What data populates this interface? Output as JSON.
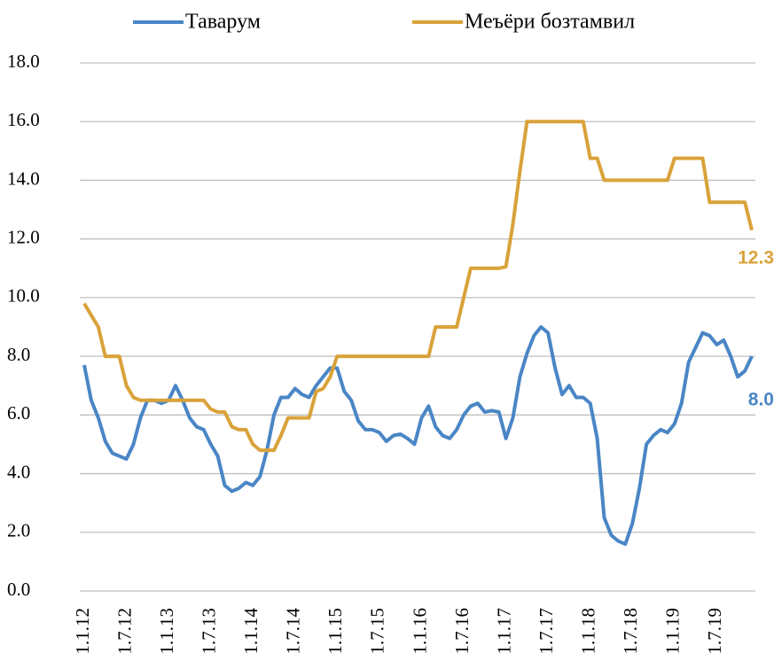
{
  "chart_data": {
    "type": "line",
    "categories": [
      "1.1.12",
      null,
      null,
      null,
      null,
      null,
      "1.7.12",
      null,
      null,
      null,
      null,
      null,
      "1.1.13",
      null,
      null,
      null,
      null,
      null,
      "1.7.13",
      null,
      null,
      null,
      null,
      null,
      "1.1.14",
      null,
      null,
      null,
      null,
      null,
      "1.7.14",
      null,
      null,
      null,
      null,
      null,
      "1.1.15",
      null,
      null,
      null,
      null,
      null,
      "1.7.15",
      null,
      null,
      null,
      null,
      null,
      "1.1.16",
      null,
      null,
      null,
      null,
      null,
      "1.7.16",
      null,
      null,
      null,
      null,
      null,
      "1.1.17",
      null,
      null,
      null,
      null,
      null,
      "1.7.17",
      null,
      null,
      null,
      null,
      null,
      "1.1.18",
      null,
      null,
      null,
      null,
      null,
      "1.7.18",
      null,
      null,
      null,
      null,
      null,
      "1.1.19",
      null,
      null,
      null,
      null,
      null,
      "1.7.19",
      null,
      null,
      null,
      null,
      null
    ],
    "series": [
      {
        "name": "Таварум",
        "color": "#4a86c5",
        "values": [
          7.7,
          6.5,
          5.9,
          5.1,
          4.7,
          4.6,
          4.5,
          5.0,
          5.9,
          6.5,
          6.5,
          6.4,
          6.5,
          7.0,
          6.5,
          5.9,
          5.6,
          5.5,
          5.0,
          4.6,
          3.6,
          3.4,
          3.5,
          3.7,
          3.6,
          3.9,
          4.8,
          6.0,
          6.6,
          6.6,
          6.9,
          6.7,
          6.6,
          7.0,
          7.3,
          7.6,
          7.6,
          6.8,
          6.5,
          5.8,
          5.5,
          5.5,
          5.4,
          5.1,
          5.3,
          5.35,
          5.2,
          5.0,
          5.9,
          6.3,
          5.6,
          5.3,
          5.2,
          5.5,
          6.0,
          6.3,
          6.4,
          6.1,
          6.15,
          6.1,
          5.2,
          5.9,
          7.3,
          8.1,
          8.7,
          9.0,
          8.8,
          7.6,
          6.7,
          7.0,
          6.6,
          6.6,
          6.4,
          5.2,
          2.5,
          1.9,
          1.7,
          1.6,
          2.3,
          3.5,
          5.0,
          5.3,
          5.5,
          5.4,
          5.7,
          6.4,
          7.8,
          8.3,
          8.8,
          8.7,
          8.4,
          8.55,
          8.0,
          7.3,
          7.5,
          8.0
        ],
        "value_labels": [
          null,
          null,
          null,
          null,
          null,
          null,
          null,
          null,
          null,
          null,
          null,
          null,
          null,
          null,
          null,
          null,
          null,
          null,
          null,
          null,
          null,
          null,
          null,
          null,
          null,
          null,
          null,
          null,
          null,
          null,
          null,
          null,
          null,
          null,
          null,
          null,
          null,
          null,
          null,
          null,
          null,
          null,
          null,
          null,
          null,
          null,
          null,
          null,
          null,
          null,
          null,
          null,
          null,
          null,
          null,
          null,
          null,
          null,
          null,
          null,
          null,
          null,
          null,
          null,
          null,
          null,
          null,
          null,
          null,
          null,
          null,
          null,
          null,
          null,
          null,
          null,
          null,
          null,
          null,
          null,
          null,
          null,
          null,
          null,
          null,
          null,
          null,
          null,
          null,
          null,
          null,
          null,
          null,
          null,
          null,
          "8.0"
        ]
      },
      {
        "name": "Меъёри бозтамвил",
        "color": "#d9a23a",
        "values": [
          9.8,
          9.4,
          9.0,
          8.0,
          8.0,
          8.0,
          7.0,
          6.6,
          6.5,
          6.5,
          6.5,
          6.5,
          6.5,
          6.5,
          6.5,
          6.5,
          6.5,
          6.5,
          6.2,
          6.1,
          6.1,
          5.6,
          5.5,
          5.5,
          5.0,
          4.8,
          4.8,
          4.8,
          5.3,
          5.9,
          5.9,
          5.9,
          5.9,
          6.8,
          6.9,
          7.3,
          8.0,
          8.0,
          8.0,
          8.0,
          8.0,
          8.0,
          8.0,
          8.0,
          8.0,
          8.0,
          8.0,
          8.0,
          8.0,
          8.0,
          9.0,
          9.0,
          9.0,
          9.0,
          10.0,
          11.0,
          11.0,
          11.0,
          11.0,
          11.0,
          11.05,
          12.5,
          14.3,
          16.0,
          16.0,
          16.0,
          16.0,
          16.0,
          16.0,
          16.0,
          16.0,
          16.0,
          14.75,
          14.75,
          14.0,
          14.0,
          14.0,
          14.0,
          14.0,
          14.0,
          14.0,
          14.0,
          14.0,
          14.0,
          14.75,
          14.75,
          14.75,
          14.75,
          14.75,
          13.25,
          13.25,
          13.25,
          13.25,
          13.25,
          13.25,
          12.3
        ],
        "value_labels": [
          null,
          null,
          null,
          null,
          null,
          null,
          null,
          null,
          null,
          null,
          null,
          null,
          null,
          null,
          null,
          null,
          null,
          null,
          null,
          null,
          null,
          null,
          null,
          null,
          null,
          null,
          null,
          null,
          null,
          null,
          null,
          null,
          null,
          null,
          null,
          null,
          null,
          null,
          null,
          null,
          null,
          null,
          null,
          null,
          null,
          null,
          null,
          null,
          null,
          null,
          null,
          null,
          null,
          null,
          null,
          null,
          null,
          null,
          null,
          null,
          null,
          null,
          null,
          null,
          null,
          null,
          null,
          null,
          null,
          null,
          null,
          null,
          null,
          null,
          null,
          null,
          null,
          null,
          null,
          null,
          null,
          null,
          null,
          null,
          null,
          null,
          null,
          null,
          null,
          null,
          null,
          null,
          null,
          null,
          null,
          "12.3"
        ]
      }
    ],
    "ylim": [
      0,
      18
    ],
    "yticks": [
      {
        "value": 0,
        "label": "0.0"
      },
      {
        "value": 2,
        "label": "2.0"
      },
      {
        "value": 4,
        "label": "4.0"
      },
      {
        "value": 6,
        "label": "6.0"
      },
      {
        "value": 8,
        "label": "8.0"
      },
      {
        "value": 10,
        "label": "10.0"
      },
      {
        "value": 12,
        "label": "12.0"
      },
      {
        "value": 14,
        "label": "14.0"
      },
      {
        "value": 16,
        "label": "16.0"
      },
      {
        "value": 18,
        "label": "18.0"
      }
    ],
    "grid": true,
    "legend": "top"
  }
}
